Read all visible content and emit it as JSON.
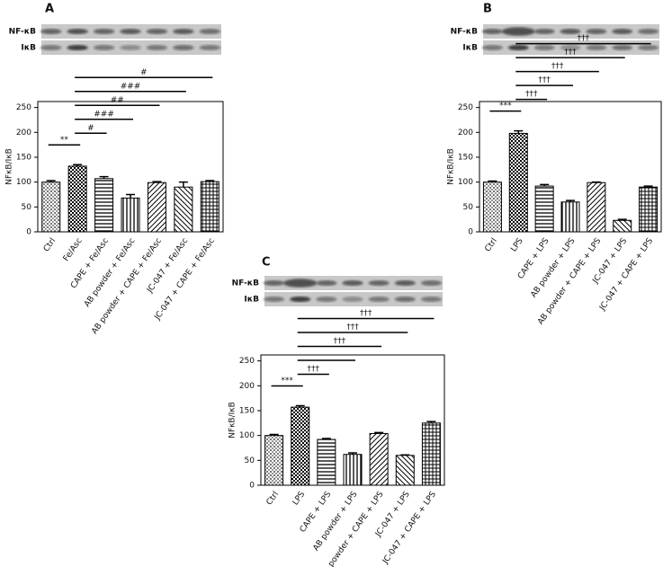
{
  "chart_data": [
    {
      "type": "bar",
      "panel": "A",
      "blots": [
        "NF-κB",
        "IκB"
      ],
      "y_label": "NFκB/IκB",
      "categories": [
        "Ctrl",
        "Fe/Asc",
        "CAPE + Fe/Asc",
        "AB powder + Fe/Asc",
        "AB powder + CAPE + Fe/Asc",
        "JC-047 + Fe/Asc",
        "JC-047 + CAPE + Fe/Asc"
      ],
      "values": [
        100,
        132,
        107,
        68,
        99,
        90,
        101
      ],
      "errors": [
        3,
        3,
        4,
        7,
        2,
        10,
        2
      ],
      "ylim": [
        0,
        262
      ],
      "yticks": [
        0,
        50,
        100,
        150,
        200,
        250
      ],
      "annotations": [
        {
          "label": "**",
          "between": [
            "Ctrl",
            "Fe/Asc"
          ]
        },
        {
          "label": "#",
          "between": [
            "Fe/Asc",
            "CAPE + Fe/Asc"
          ]
        },
        {
          "label": "###",
          "between": [
            "Fe/Asc",
            "AB powder + Fe/Asc"
          ]
        },
        {
          "label": "##",
          "between": [
            "Fe/Asc",
            "AB powder + CAPE + Fe/Asc"
          ]
        },
        {
          "label": "###",
          "between": [
            "Fe/Asc",
            "JC-047 + Fe/Asc"
          ]
        },
        {
          "label": "#",
          "between": [
            "Fe/Asc",
            "JC-047 + CAPE + Fe/Asc"
          ]
        }
      ]
    },
    {
      "type": "bar",
      "panel": "B",
      "blots": [
        "NF-κB",
        "IκB"
      ],
      "y_label": "NFκB/IκB",
      "categories": [
        "Ctrl",
        "LPS",
        "CAPE + LPS",
        "AB powder + LPS",
        "AB powder + CAPE + LPS",
        "JC-047 + LPS",
        "JC-047 + CAPE + LPS"
      ],
      "values": [
        100,
        198,
        92,
        60,
        99,
        23,
        90
      ],
      "errors": [
        2,
        5,
        3,
        3,
        1,
        2,
        2
      ],
      "ylim": [
        0,
        262
      ],
      "yticks": [
        0,
        50,
        100,
        150,
        200,
        250
      ],
      "annotations": [
        {
          "label": "***",
          "between": [
            "Ctrl",
            "LPS"
          ]
        },
        {
          "label": "†††",
          "between": [
            "LPS",
            "CAPE + LPS"
          ]
        },
        {
          "label": "†††",
          "between": [
            "LPS",
            "AB powder + LPS"
          ]
        },
        {
          "label": "†††",
          "between": [
            "LPS",
            "AB powder + CAPE + LPS"
          ]
        },
        {
          "label": "†††",
          "between": [
            "LPS",
            "JC-047 + LPS"
          ]
        },
        {
          "label": "†††",
          "between": [
            "LPS",
            "JC-047 + CAPE + LPS"
          ]
        }
      ]
    },
    {
      "type": "bar",
      "panel": "C",
      "blots": [
        "NF-κB",
        "IκB"
      ],
      "y_label": "NFκB/IκB",
      "categories": [
        "Ctrl",
        "LPS",
        "CAPE + LPS",
        "AB powder + LPS",
        "AB powder + CAPE + LPS",
        "JC-047 + LPS",
        "JC-047 + CAPE + LPS"
      ],
      "values": [
        100,
        157,
        92,
        62,
        104,
        60,
        125
      ],
      "errors": [
        2,
        3,
        2,
        3,
        2,
        1,
        3
      ],
      "ylim": [
        0,
        262
      ],
      "yticks": [
        0,
        50,
        100,
        150,
        200,
        250
      ],
      "annotations": [
        {
          "label": "***",
          "between": [
            "Ctrl",
            "LPS"
          ]
        },
        {
          "label": "†††",
          "between": [
            "LPS",
            "CAPE + LPS"
          ]
        },
        {
          "label": null,
          "between": [
            "LPS",
            "AB powder + LPS"
          ]
        },
        {
          "label": "†††",
          "between": [
            "LPS",
            "AB powder + CAPE + LPS"
          ]
        },
        {
          "label": "†††",
          "between": [
            "LPS",
            "JC-047 + LPS"
          ]
        },
        {
          "label": "†††",
          "between": [
            "LPS",
            "JC-047 + CAPE + LPS"
          ]
        }
      ]
    }
  ]
}
